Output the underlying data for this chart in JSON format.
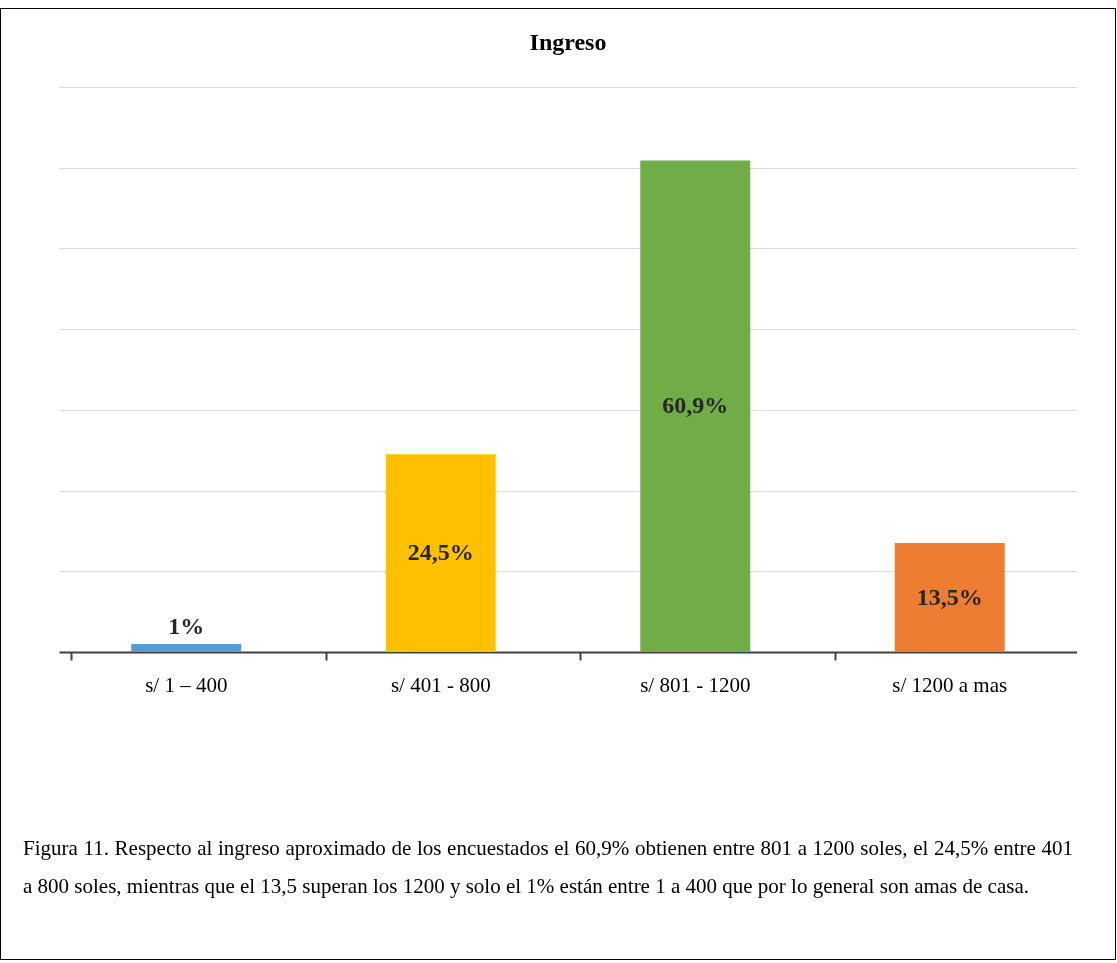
{
  "chart_data": {
    "type": "bar",
    "title": "Ingreso",
    "categories": [
      "s/ 1 – 400",
      "s/ 401 - 800",
      "s/ 801 - 1200",
      "s/ 1200 a mas"
    ],
    "values": [
      1,
      24.5,
      60.9,
      13.5
    ],
    "colors": [
      "#5b9bd5",
      "#ffc000",
      "#70ad47",
      "#ed7d31"
    ],
    "value_labels": [
      "1%",
      "24,5%",
      "60,9%",
      "13,5%"
    ],
    "ylim": [
      0,
      70
    ],
    "yticks": [
      {
        "value": 0,
        "label": null
      },
      {
        "value": 10,
        "label": null
      },
      {
        "value": 20,
        "label": null
      },
      {
        "value": 30,
        "label": null
      },
      {
        "value": 40,
        "label": null
      },
      {
        "value": 50,
        "label": null
      },
      {
        "value": 60,
        "label": null
      },
      {
        "value": 70,
        "label": null
      }
    ],
    "grid": "y",
    "tick_labels": "x",
    "annotations": [
      "Figura 11. Respecto al ingreso aproximado de los encuestados el 60,9% obtienen entre 801 a 1200 soles, el 24,5% entre 401 a 800 soles, mientras que el 13,5 superan los 1200 y solo el 1% están entre 1 a 400 que por lo general son amas de casa."
    ]
  }
}
